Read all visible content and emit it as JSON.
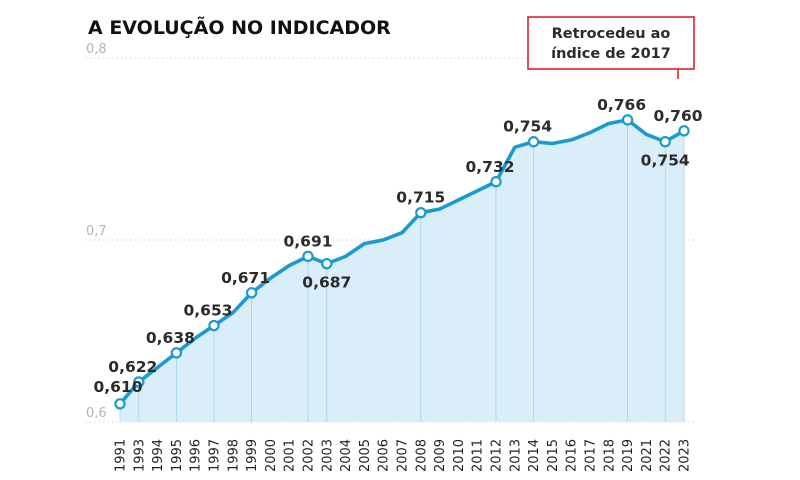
{
  "chart_data": {
    "type": "area",
    "title": "A EVOLUÇÃO NO INDICADOR",
    "xlabel": "",
    "ylabel": "",
    "ylim": [
      0.6,
      0.8
    ],
    "y_ticks": [
      "0,6",
      "0,7",
      "0,8"
    ],
    "y_tick_values": [
      0.6,
      0.7,
      0.8
    ],
    "grid": true,
    "x": [
      1991,
      1993,
      1994,
      1995,
      1996,
      1997,
      1998,
      1999,
      2000,
      2001,
      2002,
      2003,
      2004,
      2005,
      2006,
      2007,
      2008,
      2009,
      2010,
      2011,
      2012,
      2013,
      2014,
      2015,
      2016,
      2017,
      2018,
      2019,
      2021,
      2022,
      2023
    ],
    "x_labels": [
      "1991",
      "1993",
      "1994",
      "1995",
      "1996",
      "1997",
      "1998",
      "1999",
      "2000",
      "2001",
      "2002",
      "2003",
      "2004",
      "2005",
      "2006",
      "2007",
      "2008",
      "2009",
      "2010",
      "2011",
      "2012",
      "2013",
      "2014",
      "2015",
      "2016",
      "2017",
      "2018",
      "2019",
      "2021",
      "2022",
      "2023"
    ],
    "series": [
      {
        "values": [
          0.61,
          0.622,
          0.63,
          0.638,
          0.646,
          0.653,
          0.66,
          0.671,
          0.679,
          0.686,
          0.691,
          0.687,
          0.691,
          0.698,
          0.7,
          0.704,
          0.715,
          0.717,
          0.722,
          0.727,
          0.732,
          0.751,
          0.754,
          0.753,
          0.755,
          0.759,
          0.764,
          0.766,
          0.758,
          0.754,
          0.76
        ]
      }
    ],
    "highlighted": [
      {
        "x": 1991,
        "label": "0,610",
        "pos": "left"
      },
      {
        "x": 1993,
        "label": "0,622",
        "pos": "above-left"
      },
      {
        "x": 1995,
        "label": "0,638",
        "pos": "above-left"
      },
      {
        "x": 1997,
        "label": "0,653",
        "pos": "above-left"
      },
      {
        "x": 1999,
        "label": "0,671",
        "pos": "above-left"
      },
      {
        "x": 2002,
        "label": "0,691",
        "pos": "above"
      },
      {
        "x": 2003,
        "label": "0,687",
        "pos": "below"
      },
      {
        "x": 2008,
        "label": "0,715",
        "pos": "above"
      },
      {
        "x": 2012,
        "label": "0,732",
        "pos": "above-left"
      },
      {
        "x": 2014,
        "label": "0,754",
        "pos": "above-left"
      },
      {
        "x": 2019,
        "label": "0,766",
        "pos": "above-left"
      },
      {
        "x": 2022,
        "label": "0,754",
        "pos": "below"
      },
      {
        "x": 2023,
        "label": "0,760",
        "pos": "above-left"
      }
    ],
    "callout": {
      "lines": [
        "Retrocedeu ao",
        "índice de 2017"
      ],
      "points_to": 2023,
      "border_color": "#d9232d"
    },
    "colors": {
      "line": "#1b9ad2",
      "area": "#d9eef8",
      "marker_fill": "#ffffff",
      "grid": "#cfcfcf",
      "tick_label": "#b5b5b5",
      "callout_border": "#d9232d"
    }
  }
}
